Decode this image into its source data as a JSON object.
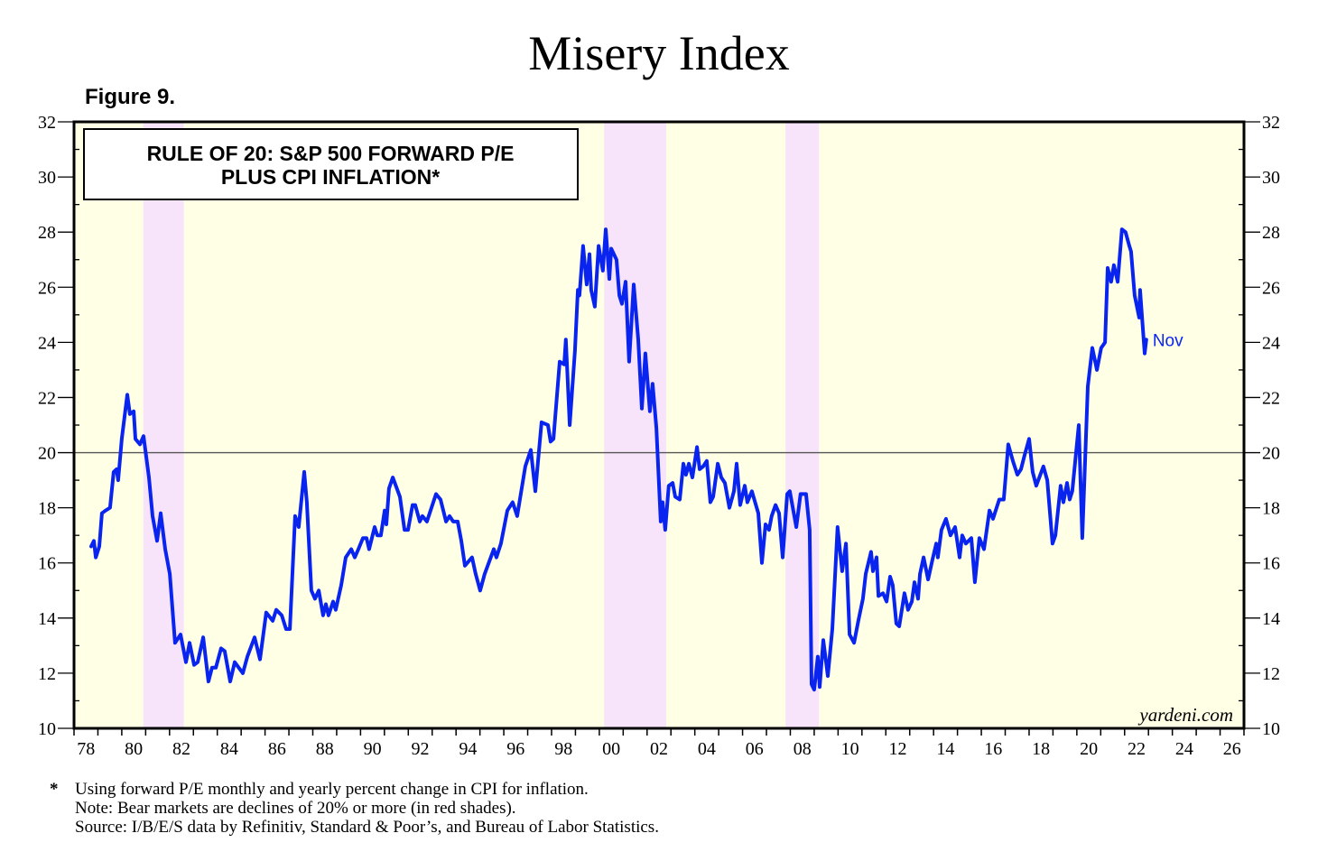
{
  "header": {
    "title": "Misery Index",
    "figure_label": "Figure 9."
  },
  "colors": {
    "line": "#0a24f0",
    "plot_bg": "#ffffe6",
    "bear_shade": "#f8e4fa",
    "label": "#0a24f0"
  },
  "chart_data": {
    "type": "line",
    "title": "RULE OF 20: S&P 500 FORWARD P/E PLUS CPI INFLATION*",
    "title_lines": [
      "RULE OF 20: S&P 500 FORWARD P/E",
      "PLUS CPI INFLATION*"
    ],
    "xlabel": "",
    "ylabel": "",
    "xlim": [
      1978,
      2027
    ],
    "ylim": [
      10,
      32
    ],
    "x_tick_labels": [
      "78",
      "80",
      "82",
      "84",
      "86",
      "88",
      "90",
      "92",
      "94",
      "96",
      "98",
      "00",
      "02",
      "04",
      "06",
      "08",
      "10",
      "12",
      "14",
      "16",
      "18",
      "20",
      "22",
      "24",
      "26"
    ],
    "x_tick_label_years": [
      1978,
      1980,
      1982,
      1984,
      1986,
      1988,
      1990,
      1992,
      1994,
      1996,
      1998,
      2000,
      2002,
      2004,
      2006,
      2008,
      2010,
      2012,
      2014,
      2016,
      2018,
      2020,
      2022,
      2024,
      2026
    ],
    "y_ticks": [
      10,
      12,
      14,
      16,
      18,
      20,
      22,
      24,
      26,
      28,
      30,
      32
    ],
    "reference_line": 20,
    "end_label": "Nov",
    "watermark": "yardeni.com",
    "bear_markets": [
      [
        1980.9,
        1982.6
      ],
      [
        2000.2,
        2002.8
      ],
      [
        2007.8,
        2009.2
      ]
    ],
    "series": [
      {
        "name": "S&P 500 forward P/E plus CPI inflation",
        "points": [
          [
            1978.72,
            16.6
          ],
          [
            1978.83,
            16.8
          ],
          [
            1978.91,
            16.2
          ],
          [
            1979.06,
            16.6
          ],
          [
            1979.17,
            17.8
          ],
          [
            1979.32,
            17.9
          ],
          [
            1979.51,
            18.0
          ],
          [
            1979.66,
            19.3
          ],
          [
            1979.78,
            19.4
          ],
          [
            1979.85,
            19.0
          ],
          [
            1980.0,
            20.5
          ],
          [
            1980.23,
            22.1
          ],
          [
            1980.34,
            21.4
          ],
          [
            1980.5,
            21.5
          ],
          [
            1980.57,
            20.5
          ],
          [
            1980.76,
            20.3
          ],
          [
            1980.91,
            20.6
          ],
          [
            1981.14,
            19.1
          ],
          [
            1981.29,
            17.7
          ],
          [
            1981.48,
            16.8
          ],
          [
            1981.63,
            17.8
          ],
          [
            1981.82,
            16.5
          ],
          [
            1982.01,
            15.6
          ],
          [
            1982.23,
            13.1
          ],
          [
            1982.46,
            13.4
          ],
          [
            1982.69,
            12.4
          ],
          [
            1982.84,
            13.1
          ],
          [
            1983.03,
            12.3
          ],
          [
            1983.18,
            12.4
          ],
          [
            1983.41,
            13.3
          ],
          [
            1983.63,
            11.7
          ],
          [
            1983.78,
            12.2
          ],
          [
            1983.94,
            12.2
          ],
          [
            1984.16,
            12.9
          ],
          [
            1984.31,
            12.8
          ],
          [
            1984.54,
            11.7
          ],
          [
            1984.73,
            12.4
          ],
          [
            1985.07,
            12.0
          ],
          [
            1985.26,
            12.6
          ],
          [
            1985.56,
            13.3
          ],
          [
            1985.79,
            12.5
          ],
          [
            1986.05,
            14.2
          ],
          [
            1986.32,
            13.9
          ],
          [
            1986.47,
            14.3
          ],
          [
            1986.7,
            14.1
          ],
          [
            1986.88,
            13.6
          ],
          [
            1987.04,
            13.6
          ],
          [
            1987.26,
            17.7
          ],
          [
            1987.41,
            17.3
          ],
          [
            1987.64,
            19.3
          ],
          [
            1987.75,
            18.2
          ],
          [
            1987.94,
            15.0
          ],
          [
            1988.09,
            14.7
          ],
          [
            1988.25,
            15.0
          ],
          [
            1988.43,
            14.1
          ],
          [
            1988.55,
            14.5
          ],
          [
            1988.66,
            14.1
          ],
          [
            1988.85,
            14.6
          ],
          [
            1988.96,
            14.3
          ],
          [
            1989.19,
            15.2
          ],
          [
            1989.38,
            16.2
          ],
          [
            1989.61,
            16.5
          ],
          [
            1989.76,
            16.2
          ],
          [
            1989.91,
            16.5
          ],
          [
            1990.1,
            16.9
          ],
          [
            1990.25,
            16.9
          ],
          [
            1990.36,
            16.5
          ],
          [
            1990.59,
            17.3
          ],
          [
            1990.7,
            17.0
          ],
          [
            1990.85,
            17.0
          ],
          [
            1991.01,
            17.9
          ],
          [
            1991.08,
            17.4
          ],
          [
            1991.19,
            18.7
          ],
          [
            1991.35,
            19.1
          ],
          [
            1991.65,
            18.4
          ],
          [
            1991.84,
            17.2
          ],
          [
            1991.99,
            17.2
          ],
          [
            1992.18,
            18.1
          ],
          [
            1992.29,
            18.1
          ],
          [
            1992.48,
            17.5
          ],
          [
            1992.59,
            17.7
          ],
          [
            1992.78,
            17.5
          ],
          [
            1993.16,
            18.5
          ],
          [
            1993.35,
            18.3
          ],
          [
            1993.58,
            17.5
          ],
          [
            1993.73,
            17.7
          ],
          [
            1993.88,
            17.5
          ],
          [
            1994.07,
            17.5
          ],
          [
            1994.22,
            16.8
          ],
          [
            1994.37,
            15.9
          ],
          [
            1994.67,
            16.2
          ],
          [
            1994.82,
            15.6
          ],
          [
            1995.01,
            15.0
          ],
          [
            1995.2,
            15.6
          ],
          [
            1995.58,
            16.5
          ],
          [
            1995.69,
            16.2
          ],
          [
            1995.88,
            16.7
          ],
          [
            1996.15,
            17.9
          ],
          [
            1996.37,
            18.2
          ],
          [
            1996.56,
            17.7
          ],
          [
            1996.9,
            19.5
          ],
          [
            1997.13,
            20.1
          ],
          [
            1997.32,
            18.6
          ],
          [
            1997.58,
            21.1
          ],
          [
            1997.85,
            21.0
          ],
          [
            1997.96,
            20.4
          ],
          [
            1998.08,
            20.5
          ],
          [
            1998.34,
            23.3
          ],
          [
            1998.53,
            23.2
          ],
          [
            1998.6,
            24.1
          ],
          [
            1998.76,
            21.0
          ],
          [
            1998.98,
            23.7
          ],
          [
            1999.1,
            25.9
          ],
          [
            1999.17,
            25.7
          ],
          [
            1999.32,
            27.5
          ],
          [
            1999.47,
            26.1
          ],
          [
            1999.59,
            27.2
          ],
          [
            1999.66,
            25.9
          ],
          [
            1999.81,
            25.3
          ],
          [
            1999.97,
            27.5
          ],
          [
            2000.15,
            26.6
          ],
          [
            2000.27,
            28.1
          ],
          [
            2000.42,
            26.3
          ],
          [
            2000.5,
            27.4
          ],
          [
            2000.72,
            27.0
          ],
          [
            2000.84,
            25.7
          ],
          [
            2000.95,
            25.4
          ],
          [
            2001.1,
            26.2
          ],
          [
            2001.25,
            23.3
          ],
          [
            2001.44,
            26.1
          ],
          [
            2001.63,
            24.1
          ],
          [
            2001.78,
            21.6
          ],
          [
            2001.93,
            23.6
          ],
          [
            2002.12,
            21.5
          ],
          [
            2002.23,
            22.5
          ],
          [
            2002.39,
            20.9
          ],
          [
            2002.57,
            17.5
          ],
          [
            2002.65,
            18.2
          ],
          [
            2002.76,
            17.2
          ],
          [
            2002.91,
            18.8
          ],
          [
            2003.07,
            18.9
          ],
          [
            2003.18,
            18.4
          ],
          [
            2003.37,
            18.3
          ],
          [
            2003.52,
            19.6
          ],
          [
            2003.63,
            19.2
          ],
          [
            2003.75,
            19.6
          ],
          [
            2003.9,
            19.1
          ],
          [
            2004.09,
            20.2
          ],
          [
            2004.2,
            19.4
          ],
          [
            2004.35,
            19.5
          ],
          [
            2004.5,
            19.7
          ],
          [
            2004.65,
            18.2
          ],
          [
            2004.77,
            18.4
          ],
          [
            2004.96,
            19.6
          ],
          [
            2005.11,
            19.1
          ],
          [
            2005.26,
            18.9
          ],
          [
            2005.45,
            18.0
          ],
          [
            2005.64,
            18.6
          ],
          [
            2005.75,
            19.6
          ],
          [
            2005.9,
            18.1
          ],
          [
            2006.09,
            18.8
          ],
          [
            2006.2,
            18.2
          ],
          [
            2006.39,
            18.6
          ],
          [
            2006.66,
            17.8
          ],
          [
            2006.81,
            16.0
          ],
          [
            2006.96,
            17.4
          ],
          [
            2007.11,
            17.2
          ],
          [
            2007.22,
            17.7
          ],
          [
            2007.38,
            18.1
          ],
          [
            2007.53,
            17.8
          ],
          [
            2007.68,
            16.2
          ],
          [
            2007.87,
            18.5
          ],
          [
            2007.98,
            18.6
          ],
          [
            2008.25,
            17.3
          ],
          [
            2008.43,
            18.5
          ],
          [
            2008.66,
            18.5
          ],
          [
            2008.81,
            17.2
          ],
          [
            2008.89,
            11.6
          ],
          [
            2009.0,
            11.4
          ],
          [
            2009.15,
            12.6
          ],
          [
            2009.23,
            11.5
          ],
          [
            2009.38,
            13.2
          ],
          [
            2009.57,
            11.9
          ],
          [
            2009.76,
            13.6
          ],
          [
            2009.98,
            17.3
          ],
          [
            2010.17,
            15.7
          ],
          [
            2010.33,
            16.7
          ],
          [
            2010.48,
            13.4
          ],
          [
            2010.67,
            13.1
          ],
          [
            2010.85,
            13.9
          ],
          [
            2011.04,
            14.7
          ],
          [
            2011.16,
            15.6
          ],
          [
            2011.38,
            16.4
          ],
          [
            2011.46,
            15.7
          ],
          [
            2011.61,
            16.2
          ],
          [
            2011.69,
            14.8
          ],
          [
            2011.88,
            14.9
          ],
          [
            2012.03,
            14.6
          ],
          [
            2012.18,
            15.5
          ],
          [
            2012.29,
            15.2
          ],
          [
            2012.44,
            13.8
          ],
          [
            2012.56,
            13.7
          ],
          [
            2012.78,
            14.9
          ],
          [
            2012.93,
            14.3
          ],
          [
            2013.09,
            14.6
          ],
          [
            2013.2,
            15.3
          ],
          [
            2013.35,
            14.7
          ],
          [
            2013.43,
            15.6
          ],
          [
            2013.58,
            16.2
          ],
          [
            2013.77,
            15.4
          ],
          [
            2013.95,
            16.1
          ],
          [
            2014.11,
            16.7
          ],
          [
            2014.18,
            16.2
          ],
          [
            2014.33,
            17.2
          ],
          [
            2014.52,
            17.6
          ],
          [
            2014.71,
            17.0
          ],
          [
            2014.9,
            17.3
          ],
          [
            2015.09,
            16.2
          ],
          [
            2015.2,
            17.0
          ],
          [
            2015.35,
            16.7
          ],
          [
            2015.58,
            16.9
          ],
          [
            2015.73,
            15.3
          ],
          [
            2015.92,
            16.9
          ],
          [
            2016.11,
            16.5
          ],
          [
            2016.34,
            17.9
          ],
          [
            2016.49,
            17.6
          ],
          [
            2016.75,
            18.3
          ],
          [
            2016.94,
            18.3
          ],
          [
            2017.13,
            20.3
          ],
          [
            2017.32,
            19.7
          ],
          [
            2017.51,
            19.2
          ],
          [
            2017.66,
            19.4
          ],
          [
            2017.81,
            19.9
          ],
          [
            2018.0,
            20.5
          ],
          [
            2018.15,
            19.3
          ],
          [
            2018.3,
            18.8
          ],
          [
            2018.6,
            19.5
          ],
          [
            2018.76,
            19.0
          ],
          [
            2018.98,
            16.7
          ],
          [
            2019.1,
            17.0
          ],
          [
            2019.32,
            18.8
          ],
          [
            2019.44,
            18.2
          ],
          [
            2019.59,
            18.9
          ],
          [
            2019.7,
            18.3
          ],
          [
            2019.81,
            18.6
          ],
          [
            2020.08,
            21.0
          ],
          [
            2020.23,
            16.9
          ],
          [
            2020.46,
            22.4
          ],
          [
            2020.65,
            23.8
          ],
          [
            2020.84,
            23.0
          ],
          [
            2021.02,
            23.8
          ],
          [
            2021.18,
            24.0
          ],
          [
            2021.29,
            26.7
          ],
          [
            2021.44,
            26.2
          ],
          [
            2021.55,
            26.8
          ],
          [
            2021.71,
            26.2
          ],
          [
            2021.89,
            28.1
          ],
          [
            2022.04,
            28.0
          ],
          [
            2022.2,
            27.5
          ],
          [
            2022.27,
            27.3
          ],
          [
            2022.42,
            25.7
          ],
          [
            2022.61,
            24.9
          ],
          [
            2022.65,
            25.9
          ],
          [
            2022.84,
            23.6
          ],
          [
            2022.91,
            24.1
          ]
        ]
      }
    ]
  },
  "footnotes": {
    "star": "*",
    "line1": "Using forward P/E monthly and yearly percent change in CPI for inflation.",
    "line2": "Note: Bear markets are declines of 20% or more (in red shades).",
    "line3": "Source: I/B/E/S data by Refinitiv, Standard & Poor’s, and Bureau of Labor Statistics."
  }
}
